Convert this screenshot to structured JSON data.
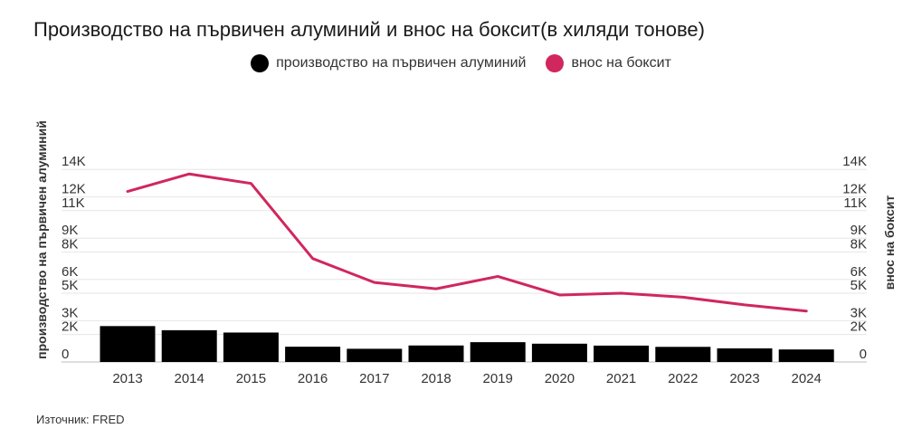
{
  "title": "Производство на първичен алуминий и внос на боксит(в хиляди тонове)",
  "source": "Източник: FRED",
  "colors": {
    "bars": "#000000",
    "line": "#d0275d",
    "grid": "#e6e6e6"
  },
  "chart_data": {
    "type": "bar+line",
    "categories": [
      "2013",
      "2014",
      "2015",
      "2016",
      "2017",
      "2018",
      "2019",
      "2020",
      "2021",
      "2022",
      "2023",
      "2024"
    ],
    "series": [
      {
        "name": "производство на първичен алуминий",
        "type": "bar",
        "axis": "left",
        "values": [
          2610,
          2310,
          2140,
          1110,
          960,
          1200,
          1440,
          1330,
          1190,
          1100,
          990,
          910
        ]
      },
      {
        "name": "внос на боксит",
        "type": "line",
        "axis": "right",
        "values": [
          12400,
          13670,
          12980,
          7520,
          5780,
          5320,
          6220,
          4870,
          5000,
          4710,
          4150,
          3700
        ]
      }
    ],
    "left_axis": {
      "label": "производство на първичен алуминий",
      "ticks": [
        0,
        2000,
        3000,
        5000,
        6000,
        8000,
        9000,
        11000,
        12000,
        14000
      ],
      "tick_labels": [
        "0",
        "2K",
        "3K",
        "5K",
        "6K",
        "8K",
        "9K",
        "11K",
        "12K",
        "14K"
      ]
    },
    "right_axis": {
      "label": "внос на боксит",
      "ticks": [
        0,
        2000,
        3000,
        5000,
        6000,
        8000,
        9000,
        11000,
        12000,
        14000
      ],
      "tick_labels": [
        "0",
        "2K",
        "3K",
        "5K",
        "6K",
        "8K",
        "9K",
        "11K",
        "12K",
        "14K"
      ]
    },
    "ylim_left": [
      0,
      18600
    ],
    "ylim_right": [
      0,
      18600
    ],
    "grid": true,
    "legend": "top-center"
  }
}
